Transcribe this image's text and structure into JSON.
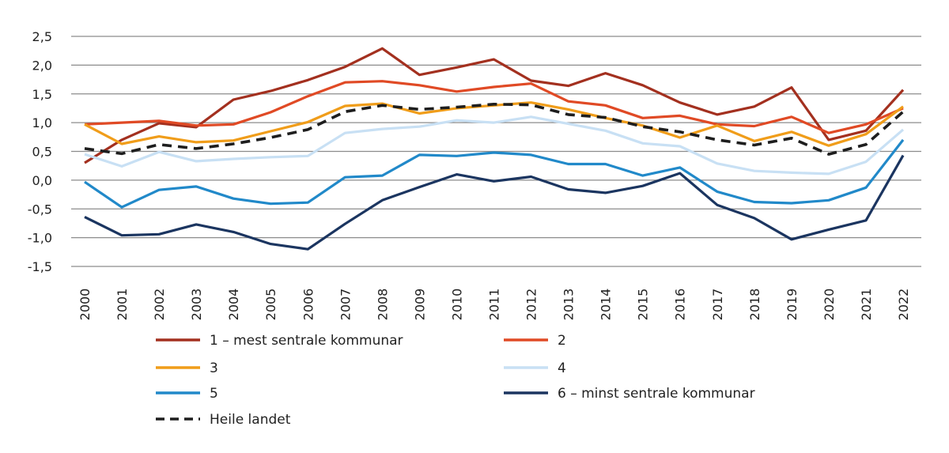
{
  "chart_data": {
    "type": "line",
    "title": "",
    "xlabel": "",
    "ylabel": "",
    "ylim": [
      -1.5,
      2.5
    ],
    "yticks": [
      "-1,5",
      "-1,0",
      "-0,5",
      "0,0",
      "0,5",
      "1,0",
      "1,5",
      "2,0",
      "2,5"
    ],
    "grid": true,
    "legend_position": "bottom",
    "x": [
      "2000",
      "2001",
      "2002",
      "2003",
      "2004",
      "2005",
      "2006",
      "2007",
      "2008",
      "2009",
      "2010",
      "2011",
      "2012",
      "2013",
      "2014",
      "2015",
      "2016",
      "2017",
      "2018",
      "2019",
      "2020",
      "2021",
      "2022"
    ],
    "series": [
      {
        "name": "1 – mest sentrale kommunar",
        "color": "#a3301f",
        "dash": false,
        "values": [
          0.3,
          0.7,
          0.99,
          0.92,
          1.4,
          1.55,
          1.74,
          1.97,
          2.29,
          1.83,
          1.96,
          2.1,
          1.73,
          1.64,
          1.86,
          1.65,
          1.35,
          1.14,
          1.28,
          1.61,
          0.7,
          0.86,
          1.57
        ]
      },
      {
        "name": "2",
        "color": "#e04a25",
        "dash": false,
        "values": [
          0.97,
          1.0,
          1.03,
          0.95,
          0.97,
          1.18,
          1.46,
          1.7,
          1.72,
          1.65,
          1.54,
          1.62,
          1.68,
          1.37,
          1.3,
          1.08,
          1.12,
          0.97,
          0.94,
          1.1,
          0.82,
          0.97,
          1.25
        ]
      },
      {
        "name": "3",
        "color": "#f09d1a",
        "dash": false,
        "values": [
          0.97,
          0.63,
          0.76,
          0.66,
          0.69,
          0.85,
          1.01,
          1.29,
          1.33,
          1.16,
          1.25,
          1.3,
          1.35,
          1.23,
          1.08,
          0.95,
          0.74,
          0.95,
          0.68,
          0.84,
          0.6,
          0.8,
          1.28
        ]
      },
      {
        "name": "4",
        "color": "#c8e0f4",
        "dash": false,
        "values": [
          0.45,
          0.24,
          0.49,
          0.33,
          0.37,
          0.4,
          0.42,
          0.82,
          0.89,
          0.93,
          1.04,
          1.0,
          1.1,
          0.98,
          0.86,
          0.64,
          0.59,
          0.29,
          0.16,
          0.13,
          0.11,
          0.32,
          0.88
        ]
      },
      {
        "name": "5",
        "color": "#2189c9",
        "dash": false,
        "values": [
          -0.03,
          -0.47,
          -0.17,
          -0.11,
          -0.32,
          -0.41,
          -0.39,
          0.05,
          0.08,
          0.44,
          0.42,
          0.48,
          0.44,
          0.28,
          0.28,
          0.08,
          0.22,
          -0.2,
          -0.38,
          -0.4,
          -0.35,
          -0.13,
          0.7
        ]
      },
      {
        "name": "6 – minst sentrale kommunar",
        "color": "#1b3560",
        "dash": false,
        "values": [
          -0.64,
          -0.96,
          -0.94,
          -0.77,
          -0.9,
          -1.11,
          -1.2,
          -0.76,
          -0.35,
          -0.12,
          0.1,
          -0.02,
          0.06,
          -0.16,
          -0.22,
          -0.1,
          0.12,
          -0.43,
          -0.66,
          -1.03,
          -0.86,
          -0.7,
          0.43
        ]
      },
      {
        "name": "Heile landet",
        "color": "#1e1e1e",
        "dash": true,
        "values": [
          0.55,
          0.46,
          0.62,
          0.55,
          0.63,
          0.74,
          0.88,
          1.19,
          1.3,
          1.23,
          1.27,
          1.32,
          1.31,
          1.14,
          1.09,
          0.93,
          0.84,
          0.7,
          0.61,
          0.73,
          0.45,
          0.62,
          1.19
        ]
      }
    ]
  }
}
